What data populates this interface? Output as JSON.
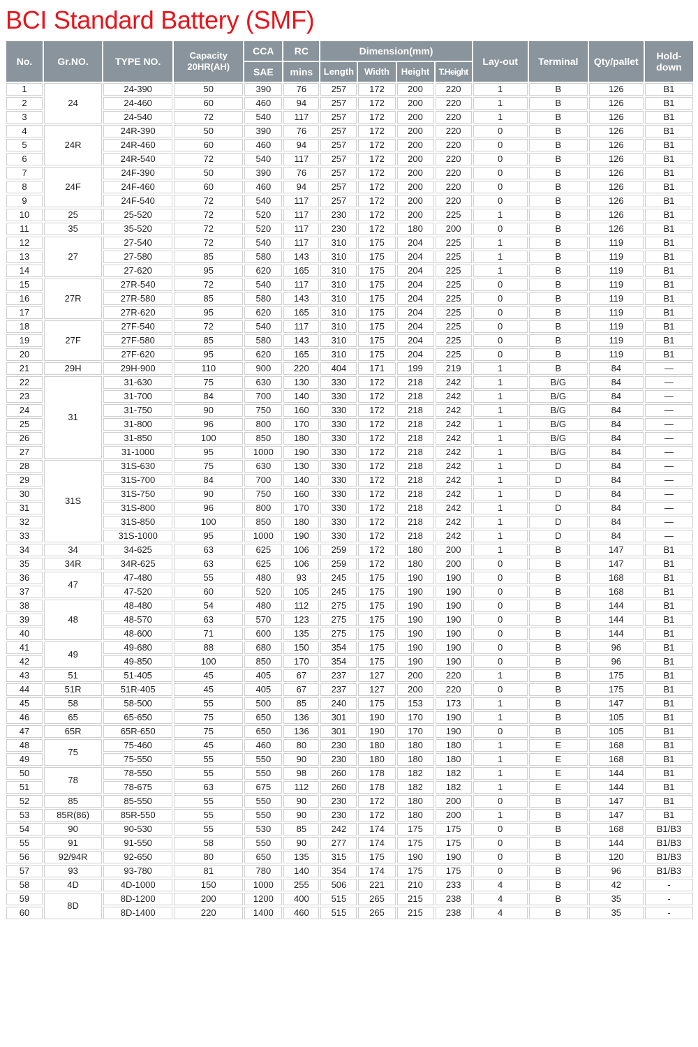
{
  "title": "BCI Standard Battery (SMF)",
  "header": {
    "no": "No.",
    "gr": "Gr.NO.",
    "type": "TYPE NO.",
    "capacity": "Capacity 20HR(AH)",
    "cca": "CCA",
    "sae": "SAE",
    "rc": "RC",
    "mins": "mins",
    "dimension": "Dimension(mm)",
    "length": "Length",
    "width": "Width",
    "height": "Height",
    "theight": "T.Height",
    "layout": "Lay-out",
    "terminal": "Terminal",
    "qty": "Qty/pallet",
    "hold": "Hold-down"
  },
  "rows": [
    [
      "1",
      "24",
      "24-390",
      "50",
      "390",
      "76",
      "257",
      "172",
      "200",
      "220",
      "1",
      "B",
      "126",
      "B1"
    ],
    [
      "2",
      "24",
      "24-460",
      "60",
      "460",
      "94",
      "257",
      "172",
      "200",
      "220",
      "1",
      "B",
      "126",
      "B1"
    ],
    [
      "3",
      "24",
      "24-540",
      "72",
      "540",
      "117",
      "257",
      "172",
      "200",
      "220",
      "1",
      "B",
      "126",
      "B1"
    ],
    [
      "4",
      "24R",
      "24R-390",
      "50",
      "390",
      "76",
      "257",
      "172",
      "200",
      "220",
      "0",
      "B",
      "126",
      "B1"
    ],
    [
      "5",
      "24R",
      "24R-460",
      "60",
      "460",
      "94",
      "257",
      "172",
      "200",
      "220",
      "0",
      "B",
      "126",
      "B1"
    ],
    [
      "6",
      "24R",
      "24R-540",
      "72",
      "540",
      "117",
      "257",
      "172",
      "200",
      "220",
      "0",
      "B",
      "126",
      "B1"
    ],
    [
      "7",
      "24F",
      "24F-390",
      "50",
      "390",
      "76",
      "257",
      "172",
      "200",
      "220",
      "0",
      "B",
      "126",
      "B1"
    ],
    [
      "8",
      "24F",
      "24F-460",
      "60",
      "460",
      "94",
      "257",
      "172",
      "200",
      "220",
      "0",
      "B",
      "126",
      "B1"
    ],
    [
      "9",
      "24F",
      "24F-540",
      "72",
      "540",
      "117",
      "257",
      "172",
      "200",
      "220",
      "0",
      "B",
      "126",
      "B1"
    ],
    [
      "10",
      "25",
      "25-520",
      "72",
      "520",
      "117",
      "230",
      "172",
      "200",
      "225",
      "1",
      "B",
      "126",
      "B1"
    ],
    [
      "11",
      "35",
      "35-520",
      "72",
      "520",
      "117",
      "230",
      "172",
      "180",
      "200",
      "0",
      "B",
      "126",
      "B1"
    ],
    [
      "12",
      "27",
      "27-540",
      "72",
      "540",
      "117",
      "310",
      "175",
      "204",
      "225",
      "1",
      "B",
      "119",
      "B1"
    ],
    [
      "13",
      "27",
      "27-580",
      "85",
      "580",
      "143",
      "310",
      "175",
      "204",
      "225",
      "1",
      "B",
      "119",
      "B1"
    ],
    [
      "14",
      "27",
      "27-620",
      "95",
      "620",
      "165",
      "310",
      "175",
      "204",
      "225",
      "1",
      "B",
      "119",
      "B1"
    ],
    [
      "15",
      "27R",
      "27R-540",
      "72",
      "540",
      "117",
      "310",
      "175",
      "204",
      "225",
      "0",
      "B",
      "119",
      "B1"
    ],
    [
      "16",
      "27R",
      "27R-580",
      "85",
      "580",
      "143",
      "310",
      "175",
      "204",
      "225",
      "0",
      "B",
      "119",
      "B1"
    ],
    [
      "17",
      "27R",
      "27R-620",
      "95",
      "620",
      "165",
      "310",
      "175",
      "204",
      "225",
      "0",
      "B",
      "119",
      "B1"
    ],
    [
      "18",
      "27F",
      "27F-540",
      "72",
      "540",
      "117",
      "310",
      "175",
      "204",
      "225",
      "0",
      "B",
      "119",
      "B1"
    ],
    [
      "19",
      "27F",
      "27F-580",
      "85",
      "580",
      "143",
      "310",
      "175",
      "204",
      "225",
      "0",
      "B",
      "119",
      "B1"
    ],
    [
      "20",
      "27F",
      "27F-620",
      "95",
      "620",
      "165",
      "310",
      "175",
      "204",
      "225",
      "0",
      "B",
      "119",
      "B1"
    ],
    [
      "21",
      "29H",
      "29H-900",
      "110",
      "900",
      "220",
      "404",
      "171",
      "199",
      "219",
      "1",
      "B",
      "84",
      "—"
    ],
    [
      "22",
      "31",
      "31-630",
      "75",
      "630",
      "130",
      "330",
      "172",
      "218",
      "242",
      "1",
      "B/G",
      "84",
      "—"
    ],
    [
      "23",
      "31",
      "31-700",
      "84",
      "700",
      "140",
      "330",
      "172",
      "218",
      "242",
      "1",
      "B/G",
      "84",
      "—"
    ],
    [
      "24",
      "31",
      "31-750",
      "90",
      "750",
      "160",
      "330",
      "172",
      "218",
      "242",
      "1",
      "B/G",
      "84",
      "—"
    ],
    [
      "25",
      "31",
      "31-800",
      "96",
      "800",
      "170",
      "330",
      "172",
      "218",
      "242",
      "1",
      "B/G",
      "84",
      "—"
    ],
    [
      "26",
      "31",
      "31-850",
      "100",
      "850",
      "180",
      "330",
      "172",
      "218",
      "242",
      "1",
      "B/G",
      "84",
      "—"
    ],
    [
      "27",
      "31",
      "31-1000",
      "95",
      "1000",
      "190",
      "330",
      "172",
      "218",
      "242",
      "1",
      "B/G",
      "84",
      "—"
    ],
    [
      "28",
      "31S",
      "31S-630",
      "75",
      "630",
      "130",
      "330",
      "172",
      "218",
      "242",
      "1",
      "D",
      "84",
      "—"
    ],
    [
      "29",
      "31S",
      "31S-700",
      "84",
      "700",
      "140",
      "330",
      "172",
      "218",
      "242",
      "1",
      "D",
      "84",
      "—"
    ],
    [
      "30",
      "31S",
      "31S-750",
      "90",
      "750",
      "160",
      "330",
      "172",
      "218",
      "242",
      "1",
      "D",
      "84",
      "—"
    ],
    [
      "31",
      "31S",
      "31S-800",
      "96",
      "800",
      "170",
      "330",
      "172",
      "218",
      "242",
      "1",
      "D",
      "84",
      "—"
    ],
    [
      "32",
      "31S",
      "31S-850",
      "100",
      "850",
      "180",
      "330",
      "172",
      "218",
      "242",
      "1",
      "D",
      "84",
      "—"
    ],
    [
      "33",
      "31S",
      "31S-1000",
      "95",
      "1000",
      "190",
      "330",
      "172",
      "218",
      "242",
      "1",
      "D",
      "84",
      "—"
    ],
    [
      "34",
      "34",
      "34-625",
      "63",
      "625",
      "106",
      "259",
      "172",
      "180",
      "200",
      "1",
      "B",
      "147",
      "B1"
    ],
    [
      "35",
      "34R",
      "34R-625",
      "63",
      "625",
      "106",
      "259",
      "172",
      "180",
      "200",
      "0",
      "B",
      "147",
      "B1"
    ],
    [
      "36",
      "47",
      "47-480",
      "55",
      "480",
      "93",
      "245",
      "175",
      "190",
      "190",
      "0",
      "B",
      "168",
      "B1"
    ],
    [
      "37",
      "47",
      "47-520",
      "60",
      "520",
      "105",
      "245",
      "175",
      "190",
      "190",
      "0",
      "B",
      "168",
      "B1"
    ],
    [
      "38",
      "48",
      "48-480",
      "54",
      "480",
      "112",
      "275",
      "175",
      "190",
      "190",
      "0",
      "B",
      "144",
      "B1"
    ],
    [
      "39",
      "48",
      "48-570",
      "63",
      "570",
      "123",
      "275",
      "175",
      "190",
      "190",
      "0",
      "B",
      "144",
      "B1"
    ],
    [
      "40",
      "48",
      "48-600",
      "71",
      "600",
      "135",
      "275",
      "175",
      "190",
      "190",
      "0",
      "B",
      "144",
      "B1"
    ],
    [
      "41",
      "49",
      "49-680",
      "88",
      "680",
      "150",
      "354",
      "175",
      "190",
      "190",
      "0",
      "B",
      "96",
      "B1"
    ],
    [
      "42",
      "49",
      "49-850",
      "100",
      "850",
      "170",
      "354",
      "175",
      "190",
      "190",
      "0",
      "B",
      "96",
      "B1"
    ],
    [
      "43",
      "51",
      "51-405",
      "45",
      "405",
      "67",
      "237",
      "127",
      "200",
      "220",
      "1",
      "B",
      "175",
      "B1"
    ],
    [
      "44",
      "51R",
      "51R-405",
      "45",
      "405",
      "67",
      "237",
      "127",
      "200",
      "220",
      "0",
      "B",
      "175",
      "B1"
    ],
    [
      "45",
      "58",
      "58-500",
      "55",
      "500",
      "85",
      "240",
      "175",
      "153",
      "173",
      "1",
      "B",
      "147",
      "B1"
    ],
    [
      "46",
      "65",
      "65-650",
      "75",
      "650",
      "136",
      "301",
      "190",
      "170",
      "190",
      "1",
      "B",
      "105",
      "B1"
    ],
    [
      "47",
      "65R",
      "65R-650",
      "75",
      "650",
      "136",
      "301",
      "190",
      "170",
      "190",
      "0",
      "B",
      "105",
      "B1"
    ],
    [
      "48",
      "75",
      "75-460",
      "45",
      "460",
      "80",
      "230",
      "180",
      "180",
      "180",
      "1",
      "E",
      "168",
      "B1"
    ],
    [
      "49",
      "75",
      "75-550",
      "55",
      "550",
      "90",
      "230",
      "180",
      "180",
      "180",
      "1",
      "E",
      "168",
      "B1"
    ],
    [
      "50",
      "78",
      "78-550",
      "55",
      "550",
      "98",
      "260",
      "178",
      "182",
      "182",
      "1",
      "E",
      "144",
      "B1"
    ],
    [
      "51",
      "78",
      "78-675",
      "63",
      "675",
      "112",
      "260",
      "178",
      "182",
      "182",
      "1",
      "E",
      "144",
      "B1"
    ],
    [
      "52",
      "85",
      "85-550",
      "55",
      "550",
      "90",
      "230",
      "172",
      "180",
      "200",
      "0",
      "B",
      "147",
      "B1"
    ],
    [
      "53",
      "85R(86)",
      "85R-550",
      "55",
      "550",
      "90",
      "230",
      "172",
      "180",
      "200",
      "1",
      "B",
      "147",
      "B1"
    ],
    [
      "54",
      "90",
      "90-530",
      "55",
      "530",
      "85",
      "242",
      "174",
      "175",
      "175",
      "0",
      "B",
      "168",
      "B1/B3"
    ],
    [
      "55",
      "91",
      "91-550",
      "58",
      "550",
      "90",
      "277",
      "174",
      "175",
      "175",
      "0",
      "B",
      "144",
      "B1/B3"
    ],
    [
      "56",
      "92/94R",
      "92-650",
      "80",
      "650",
      "135",
      "315",
      "175",
      "190",
      "190",
      "0",
      "B",
      "120",
      "B1/B3"
    ],
    [
      "57",
      "93",
      "93-780",
      "81",
      "780",
      "140",
      "354",
      "174",
      "175",
      "175",
      "0",
      "B",
      "96",
      "B1/B3"
    ],
    [
      "58",
      "4D",
      "4D-1000",
      "150",
      "1000",
      "255",
      "506",
      "221",
      "210",
      "233",
      "4",
      "B",
      "42",
      "-"
    ],
    [
      "59",
      "8D",
      "8D-1200",
      "200",
      "1200",
      "400",
      "515",
      "265",
      "215",
      "238",
      "4",
      "B",
      "35",
      "-"
    ],
    [
      "60",
      "8D",
      "8D-1400",
      "220",
      "1400",
      "460",
      "515",
      "265",
      "215",
      "238",
      "4",
      "B",
      "35",
      "-"
    ]
  ]
}
